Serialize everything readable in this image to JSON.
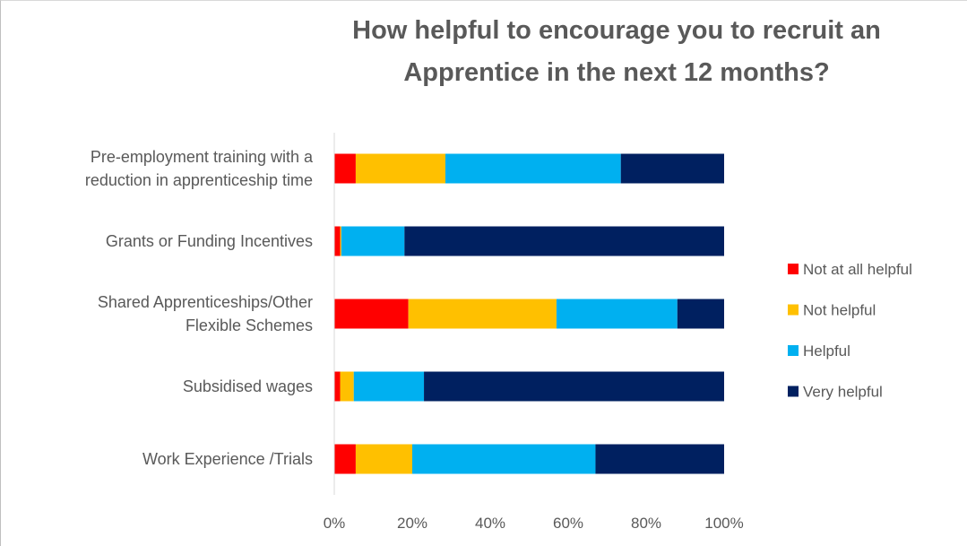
{
  "chart_data": {
    "type": "bar",
    "orientation": "horizontal",
    "stacked": "percent",
    "title_lines": [
      "How helpful to encourage you to recruit an",
      "Apprentice in the next 12 months?"
    ],
    "categories": [
      [
        "Pre-employment training with a",
        "reduction in apprenticeship time"
      ],
      [
        "Grants or Funding Incentives"
      ],
      [
        "Shared Apprenticeships/Other",
        "Flexible Schemes"
      ],
      [
        "Subsidised wages"
      ],
      [
        "Work Experience /Trials"
      ]
    ],
    "series": [
      {
        "name": "Not at all helpful",
        "color": "#ff0000",
        "values": [
          5.5,
          1.5,
          19,
          1.5,
          5.5
        ]
      },
      {
        "name": "Not helpful",
        "color": "#ffc000",
        "values": [
          23,
          0.3,
          38,
          3.5,
          14.5
        ]
      },
      {
        "name": "Helpful",
        "color": "#00b0f0",
        "values": [
          45,
          16.2,
          31,
          18,
          47
        ]
      },
      {
        "name": "Very helpful",
        "color": "#002060",
        "values": [
          26.5,
          82,
          12,
          77,
          33
        ]
      }
    ],
    "xlim": [
      0,
      100
    ],
    "xticks": [
      "0%",
      "20%",
      "40%",
      "60%",
      "80%",
      "100%"
    ],
    "legend_position": "right",
    "grid": false
  }
}
